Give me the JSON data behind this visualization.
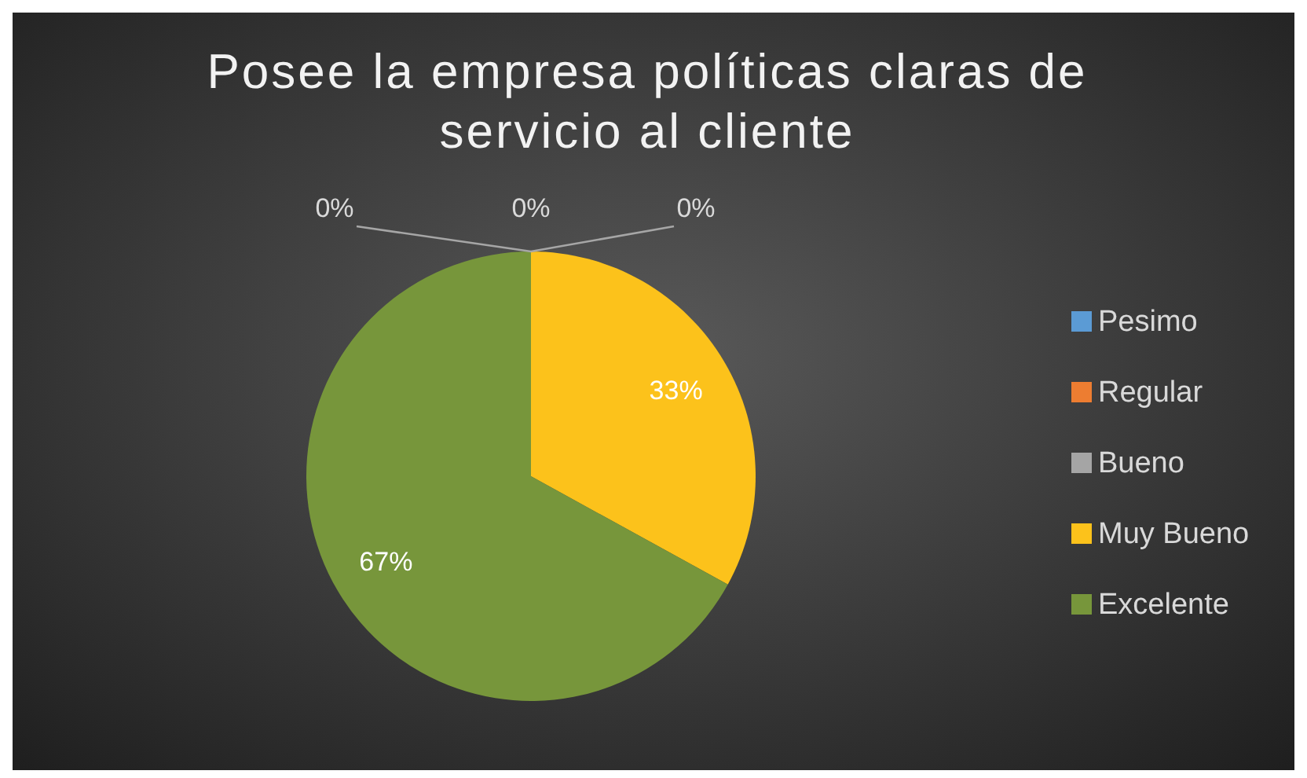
{
  "chart_data": {
    "type": "pie",
    "title": "Posee la empresa políticas claras de servicio al cliente",
    "categories": [
      "Pesimo",
      "Regular",
      "Bueno",
      "Muy Bueno",
      "Excelente"
    ],
    "values": [
      0,
      0,
      0,
      33,
      67
    ],
    "value_labels": [
      "0%",
      "0%",
      "0%",
      "33%",
      "67%"
    ],
    "colors": [
      "#5b9bd5",
      "#ed7d31",
      "#a5a5a5",
      "#fcc21b",
      "#77963b"
    ],
    "legend": "right"
  }
}
